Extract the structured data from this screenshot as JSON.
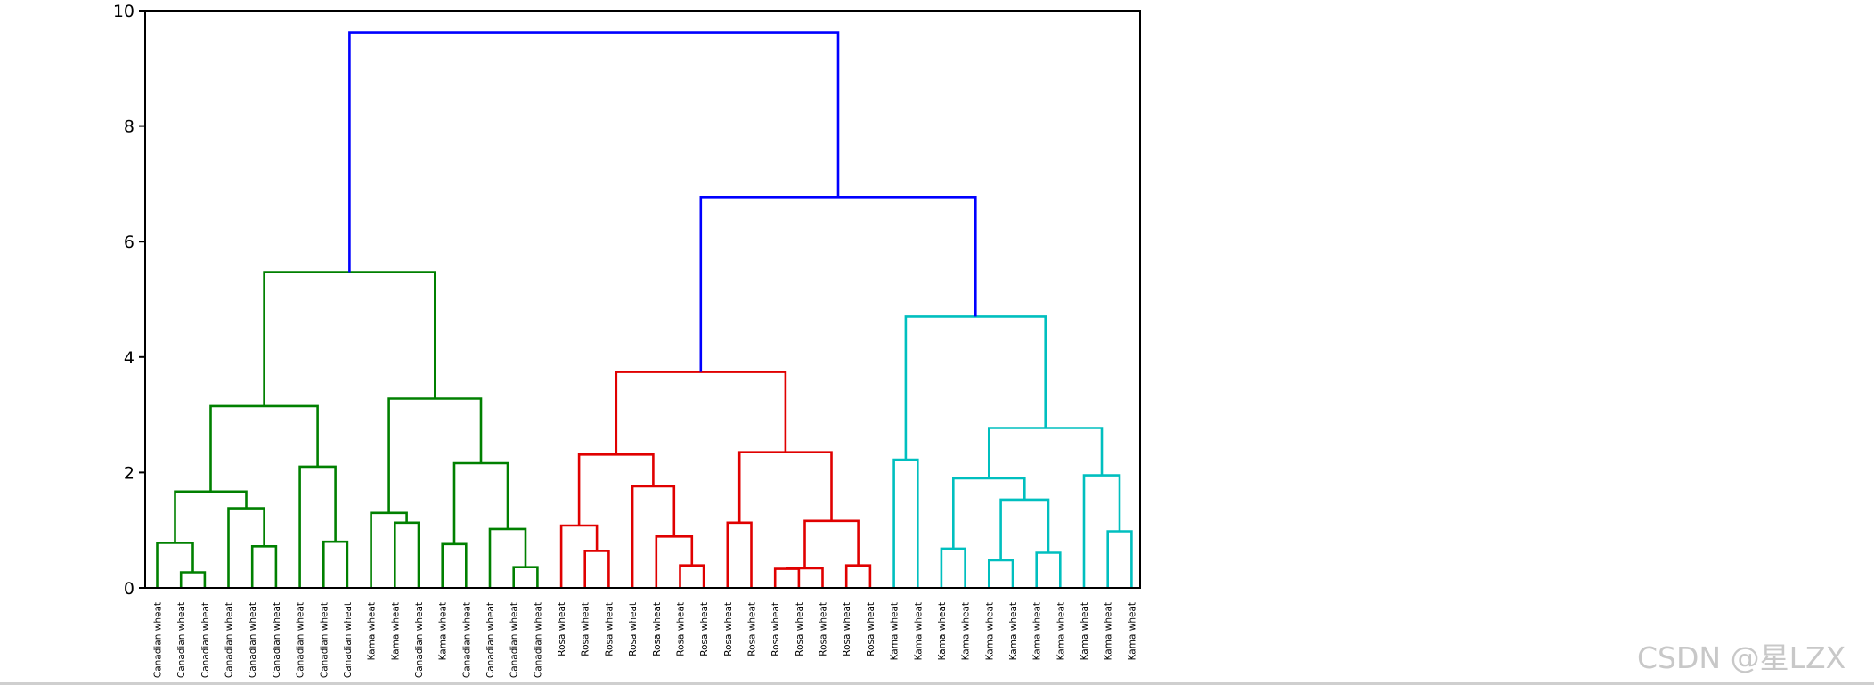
{
  "chart_data": {
    "type": "dendrogram",
    "title": "",
    "xlabel": "",
    "ylabel": "",
    "ylim": [
      0,
      10
    ],
    "yticks": [
      0,
      2,
      4,
      6,
      8,
      10
    ],
    "grid": false,
    "colors": {
      "C1": "#008000",
      "C2": "#e00000",
      "C3": "#00bfbf",
      "above_threshold": "#0000ff",
      "axes": "#000000",
      "tick_text": "#000000"
    },
    "leaves": [
      "Canadian wheat",
      "Canadian wheat",
      "Canadian wheat",
      "Canadian wheat",
      "Canadian wheat",
      "Canadian wheat",
      "Canadian wheat",
      "Canadian wheat",
      "Canadian wheat",
      "Kama wheat",
      "Kama wheat",
      "Canadian wheat",
      "Kama wheat",
      "Canadian wheat",
      "Canadian wheat",
      "Canadian wheat",
      "Canadian wheat",
      "Rosa wheat",
      "Rosa wheat",
      "Rosa wheat",
      "Rosa wheat",
      "Rosa wheat",
      "Rosa wheat",
      "Rosa wheat",
      "Rosa wheat",
      "Rosa wheat",
      "Rosa wheat",
      "Rosa wheat",
      "Rosa wheat",
      "Rosa wheat",
      "Rosa wheat",
      "Kama wheat",
      "Kama wheat",
      "Kama wheat",
      "Kama wheat",
      "Kama wheat",
      "Kama wheat",
      "Kama wheat",
      "Kama wheat",
      "Kama wheat",
      "Kama wheat",
      "Kama wheat"
    ],
    "merges": [
      {
        "l": 1,
        "r": 2,
        "h": 0.27,
        "c": "C1"
      },
      {
        "l": 0,
        "r": "m0",
        "h": 0.78,
        "c": "C1"
      },
      {
        "l": 4,
        "r": 5,
        "h": 0.72,
        "c": "C1"
      },
      {
        "l": 3,
        "r": "m2",
        "h": 1.38,
        "c": "C1"
      },
      {
        "l": "m1",
        "r": "m3",
        "h": 1.67,
        "c": "C1"
      },
      {
        "l": 7,
        "r": 8,
        "h": 0.8,
        "c": "C1"
      },
      {
        "l": 6,
        "r": "m5",
        "h": 2.1,
        "c": "C1"
      },
      {
        "l": "m4",
        "r": "m6",
        "h": 3.15,
        "c": "C1"
      },
      {
        "l": 10,
        "r": 11,
        "h": 1.13,
        "c": "C1"
      },
      {
        "l": 9,
        "r": "m8",
        "h": 1.3,
        "c": "C1"
      },
      {
        "l": 12,
        "r": 13,
        "h": 0.76,
        "c": "C1"
      },
      {
        "l": 15,
        "r": 16,
        "h": 0.36,
        "c": "C1"
      },
      {
        "l": 14,
        "r": "m11",
        "h": 1.02,
        "c": "C1"
      },
      {
        "l": "m10",
        "r": "m12",
        "h": 2.16,
        "c": "C1"
      },
      {
        "l": "m9",
        "r": "m13",
        "h": 3.28,
        "c": "C1"
      },
      {
        "l": "m7",
        "r": "m14",
        "h": 5.47,
        "c": "C1"
      },
      {
        "l": 18,
        "r": 19,
        "h": 0.64,
        "c": "C2"
      },
      {
        "l": 17,
        "r": "m16",
        "h": 1.08,
        "c": "C2"
      },
      {
        "l": 22,
        "r": 23,
        "h": 0.39,
        "c": "C2"
      },
      {
        "l": 21,
        "r": "m18",
        "h": 0.89,
        "c": "C2"
      },
      {
        "l": 20,
        "r": "m19",
        "h": 1.76,
        "c": "C2"
      },
      {
        "l": "m17",
        "r": "m20",
        "h": 2.31,
        "c": "C2"
      },
      {
        "l": 24,
        "r": 25,
        "h": 1.13,
        "c": "C2"
      },
      {
        "l": 26,
        "r": 27,
        "h": 0.33,
        "c": "C2"
      },
      {
        "l": 28,
        "r": "m23",
        "h": 0.34,
        "c": "C2"
      },
      {
        "l": 29,
        "r": 30,
        "h": 0.39,
        "c": "C2"
      },
      {
        "l": "m24",
        "r": "m25",
        "h": 1.16,
        "c": "C2"
      },
      {
        "l": "m22",
        "r": "m26",
        "h": 2.35,
        "c": "C2"
      },
      {
        "l": "m21",
        "r": "m27",
        "h": 3.74,
        "c": "C2"
      },
      {
        "l": 31,
        "r": 32,
        "h": 2.22,
        "c": "C3"
      },
      {
        "l": 33,
        "r": 34,
        "h": 0.68,
        "c": "C3"
      },
      {
        "l": 35,
        "r": 36,
        "h": 0.48,
        "c": "C3"
      },
      {
        "l": 37,
        "r": 38,
        "h": 0.61,
        "c": "C3"
      },
      {
        "l": "m31",
        "r": "m32",
        "h": 1.53,
        "c": "C3"
      },
      {
        "l": "m30",
        "r": "m33",
        "h": 1.9,
        "c": "C3"
      },
      {
        "l": 40,
        "r": 41,
        "h": 0.98,
        "c": "C3"
      },
      {
        "l": 39,
        "r": "m35",
        "h": 1.95,
        "c": "C3"
      },
      {
        "l": "m34",
        "r": "m36",
        "h": 2.77,
        "c": "C3"
      },
      {
        "l": "m29",
        "r": "m37",
        "h": 4.7,
        "c": "C3"
      },
      {
        "l": "m28",
        "r": "m38",
        "h": 6.77,
        "c": "above_threshold"
      },
      {
        "l": "m15",
        "r": "m39",
        "h": 9.62,
        "c": "above_threshold"
      }
    ]
  },
  "watermark": "CSDN @星LZX"
}
